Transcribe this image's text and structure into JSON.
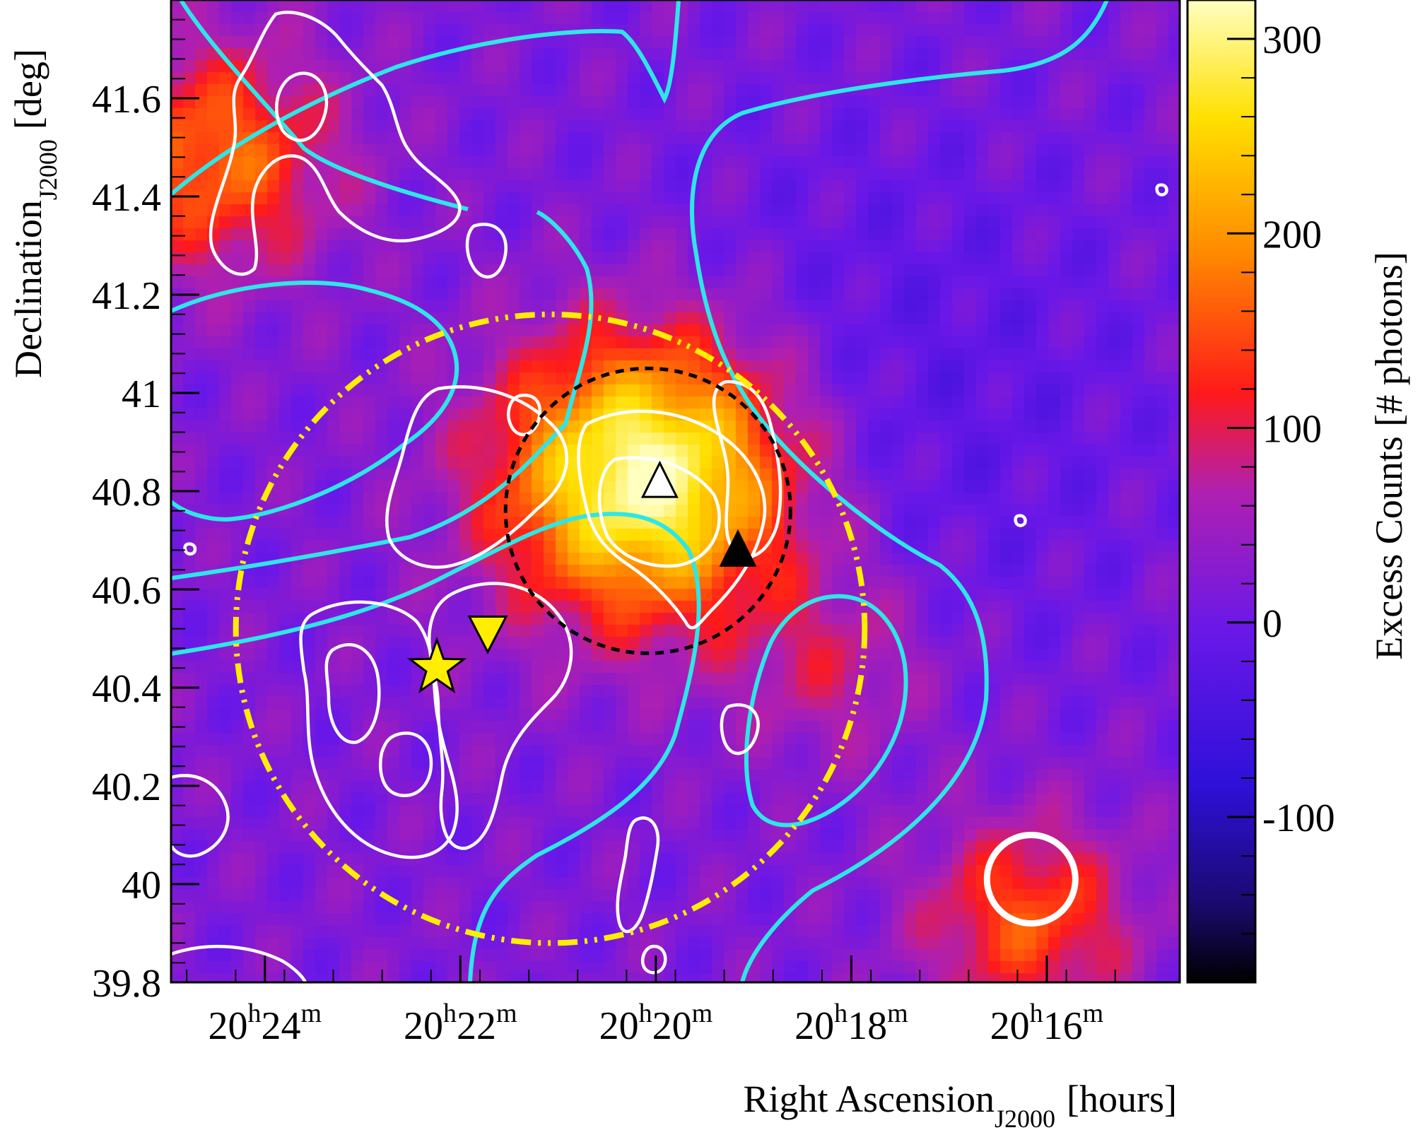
{
  "chart_data": {
    "type": "heatmap",
    "title": "",
    "xlabel": {
      "main": "Right Ascension",
      "sub": "J2000",
      "unit": "[hours]"
    },
    "ylabel": {
      "main": "Declination",
      "sub": "J2000",
      "unit": "[deg]"
    },
    "zlabel": "Excess Counts [# photons]",
    "x_ticks": [
      {
        "value": 306.0,
        "h": "20",
        "m": "24"
      },
      {
        "value": 305.5,
        "h": "20",
        "m": "22"
      },
      {
        "value": 305.0,
        "h": "20",
        "m": "20"
      },
      {
        "value": 304.5,
        "h": "20",
        "m": "18"
      },
      {
        "value": 304.0,
        "h": "20",
        "m": "16"
      }
    ],
    "x_tick_units": {
      "hours": "h",
      "minutes": "m"
    },
    "xlim_deg": [
      306.24,
      303.66
    ],
    "y_ticks": [
      {
        "value": 39.8,
        "label": "39.8"
      },
      {
        "value": 40.0,
        "label": "40"
      },
      {
        "value": 40.2,
        "label": "40.2"
      },
      {
        "value": 40.4,
        "label": "40.4"
      },
      {
        "value": 40.6,
        "label": "40.6"
      },
      {
        "value": 40.8,
        "label": "40.8"
      },
      {
        "value": 41.0,
        "label": "41"
      },
      {
        "value": 41.2,
        "label": "41.2"
      },
      {
        "value": 41.4,
        "label": "41.4"
      },
      {
        "value": 41.6,
        "label": "41.6"
      }
    ],
    "ylim": [
      39.8,
      41.8
    ],
    "z_ticks": [
      {
        "value": -100,
        "label": "-100"
      },
      {
        "value": 0,
        "label": "0"
      },
      {
        "value": 100,
        "label": "100"
      },
      {
        "value": 200,
        "label": "200"
      },
      {
        "value": 300,
        "label": "300"
      }
    ],
    "zlim": [
      -185,
      320
    ],
    "colormap": [
      "#000000",
      "#1a0a6e",
      "#2e10d8",
      "#6a18e8",
      "#b020b0",
      "#ff1a1a",
      "#ff8800",
      "#ffe000",
      "#ffffc0"
    ],
    "excess_hotspots": [
      {
        "ra": 305.02,
        "dec": 40.83,
        "peak": 320,
        "sigma_deg": 0.2
      },
      {
        "ra": 306.13,
        "dec": 41.48,
        "peak": 150,
        "sigma_deg": 0.16
      },
      {
        "ra": 304.05,
        "dec": 39.93,
        "peak": 130,
        "sigma_deg": 0.14
      },
      {
        "ra": 304.55,
        "dec": 40.45,
        "peak": 70,
        "sigma_deg": 0.14
      }
    ],
    "background_level": 20,
    "markers": [
      {
        "type": "star",
        "ra": 305.56,
        "dec": 40.44,
        "color": "#ffee00"
      },
      {
        "type": "triangle-down",
        "ra": 305.43,
        "dec": 40.51,
        "color": "#ffee00"
      },
      {
        "type": "triangle-up-open",
        "ra": 304.99,
        "dec": 40.82,
        "color": "#ffffff"
      },
      {
        "type": "triangle-up-filled",
        "ra": 304.79,
        "dec": 40.68,
        "color": "#000000"
      }
    ],
    "regions": [
      {
        "type": "circle-dotted",
        "ra": 305.02,
        "dec": 40.76,
        "r_deg": 0.29,
        "color": "#000000"
      },
      {
        "type": "circle-dashdot",
        "ra": 305.27,
        "dec": 40.52,
        "r_deg": 0.64,
        "color": "#ffee00"
      },
      {
        "type": "circle-psf",
        "ra": 304.04,
        "dec": 40.01,
        "r_deg": 0.09,
        "color": "#ffffff"
      }
    ],
    "contour_colors": {
      "cyan": "#2ee6e6",
      "white": "#ffffff"
    }
  }
}
